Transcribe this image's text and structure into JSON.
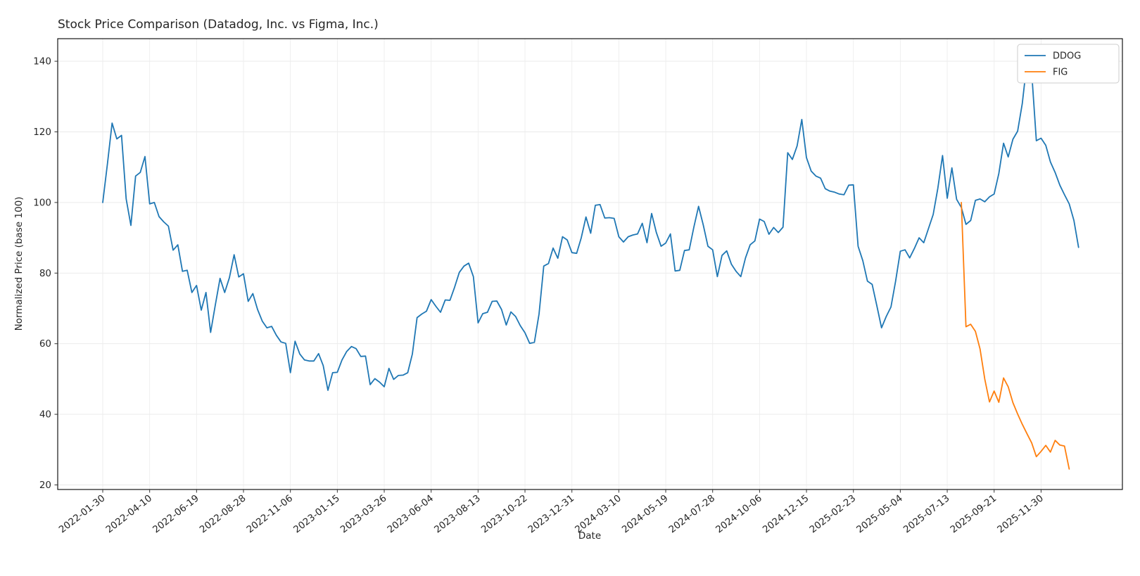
{
  "title": "Stock Price Comparison (Datadog, Inc. vs Figma, Inc.)",
  "xlabel": "Date",
  "ylabel": "Normalized Price (base 100)",
  "legend": {
    "position": "upper right",
    "entries": [
      {
        "label": "DDOG",
        "color": "#1f77b4"
      },
      {
        "label": "FIG",
        "color": "#ff7f0e"
      }
    ]
  },
  "chart_data": {
    "type": "line",
    "title": "Stock Price Comparison (Datadog, Inc. vs Figma, Inc.)",
    "xlabel": "Date",
    "ylabel": "Normalized Price (base 100)",
    "grid": true,
    "x_start_date": "2022-01-30",
    "x_interval_days": 7,
    "x_tick_every_n_points": 10,
    "x_tick_labels": [
      "2022-01-30",
      "2022-04-10",
      "2022-06-19",
      "2022-08-28",
      "2022-11-06",
      "2023-01-15",
      "2023-03-26",
      "2023-06-04",
      "2023-08-13",
      "2023-10-22",
      "2023-12-31",
      "2024-03-10",
      "2024-05-19",
      "2024-07-28",
      "2024-10-06",
      "2024-12-15",
      "2025-02-23",
      "2025-05-04",
      "2025-07-13",
      "2025-09-21",
      "2025-11-30"
    ],
    "y_ticks": [
      20,
      40,
      60,
      80,
      100,
      120,
      140
    ],
    "ylim": [
      15.5,
      146.5
    ],
    "series": [
      {
        "name": "DDOG",
        "color": "#1f77b4",
        "start_index": 0,
        "values": [
          100,
          111,
          122.5,
          118,
          119,
          101,
          93.5,
          107.5,
          108.5,
          113,
          99.6,
          100,
          96,
          94.5,
          93.3,
          86.5,
          88,
          80.5,
          80.8,
          74.5,
          76.5,
          69.5,
          74.5,
          63.2,
          71,
          78.5,
          74.5,
          78.7,
          85.2,
          78.9,
          79.8,
          72,
          74.2,
          69.7,
          66.4,
          64.5,
          64.9,
          62.4,
          60.5,
          60.1,
          51.8,
          60.7,
          57.1,
          55.4,
          55.1,
          55.1,
          57.2,
          53.8,
          46.8,
          51.8,
          51.9,
          55.4,
          57.8,
          59.2,
          58.6,
          56.4,
          56.5,
          48.4,
          50.1,
          49.1,
          47.8,
          53,
          49.9,
          51,
          51.1,
          51.8,
          57.1,
          67.4,
          68.4,
          69.2,
          72.5,
          70.6,
          68.9,
          72.4,
          72.3,
          76,
          80.2,
          82,
          82.8,
          79,
          65.9,
          68.5,
          68.9,
          72,
          72.1,
          69.7,
          65.3,
          69,
          67.7,
          65.1,
          63.1,
          60.1,
          60.4,
          68.4,
          82,
          82.7,
          87.1,
          84.2,
          90.3,
          89.4,
          85.8,
          85.6,
          90,
          95.9,
          91.3,
          99.2,
          99.4,
          95.6,
          95.7,
          95.5,
          90.3,
          88.8,
          90.3,
          90.8,
          91.1,
          94.1,
          88.6,
          96.9,
          91.5,
          87.6,
          88.5,
          91.1,
          80.6,
          80.8,
          86.4,
          86.6,
          93,
          98.9,
          93.6,
          87.6,
          86.6,
          79,
          85,
          86.3,
          82.5,
          80.5,
          79,
          84.3,
          88,
          89.1,
          95.3,
          94.6,
          91,
          92.9,
          91.5,
          93,
          114.1,
          112.2,
          116,
          123.5,
          112.7,
          108.9,
          107.5,
          106.9,
          103.9,
          103.2,
          102.9,
          102.4,
          102.2,
          104.9,
          105,
          87.6,
          83.5,
          77.7,
          76.8,
          70.7,
          64.5,
          67.7,
          70.4,
          77.7,
          86.2,
          86.6,
          84.3,
          87,
          90,
          88.6,
          92.6,
          96.6,
          104,
          113.3,
          101.2,
          109.8,
          100.9,
          98.6,
          93.8,
          94.9,
          100.6,
          101,
          100.2,
          101.6,
          102.4,
          108.2,
          116.8,
          112.9,
          117.9,
          120.2,
          128,
          139.8,
          136.8,
          117.5,
          118.2,
          116.2,
          111.5,
          108.5,
          104.9,
          102.2,
          99.6,
          94.9,
          87.3
        ]
      },
      {
        "name": "FIG",
        "color": "#ff7f0e",
        "start_index": 183,
        "values": [
          100,
          64.8,
          65.5,
          63.5,
          58.5,
          50,
          43.5,
          46.6,
          43.4,
          50.3,
          47.8,
          43.3,
          40.1,
          37.2,
          34.5,
          31.9,
          28,
          29.5,
          31.2,
          29.3,
          32.6,
          31.3,
          31,
          24.5
        ]
      }
    ]
  }
}
